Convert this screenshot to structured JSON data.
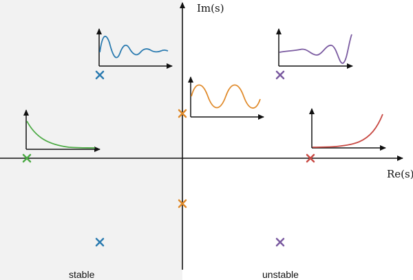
{
  "axes": {
    "x_label": "Re(s)",
    "y_label": "Im(s)"
  },
  "regions": {
    "stable_label": "stable",
    "unstable_label": "unstable"
  },
  "colors": {
    "stable_region_fill": "#f2f2f2",
    "axis": "#111111",
    "blue": "#2b7bb0",
    "green": "#4caa44",
    "orange": "#e08a2a",
    "purple": "#7a5aa0",
    "red": "#c84a44"
  },
  "poles": [
    {
      "name": "pole-stable-oscillating-upper",
      "color_key": "blue"
    },
    {
      "name": "pole-stable-oscillating-lower",
      "color_key": "blue"
    },
    {
      "name": "pole-stable-real",
      "color_key": "green"
    },
    {
      "name": "pole-marginal-upper",
      "color_key": "orange"
    },
    {
      "name": "pole-marginal-lower",
      "color_key": "orange"
    },
    {
      "name": "pole-unstable-oscillating-upper",
      "color_key": "purple"
    },
    {
      "name": "pole-unstable-oscillating-lower",
      "color_key": "purple"
    },
    {
      "name": "pole-unstable-real",
      "color_key": "red"
    }
  ],
  "responses": [
    {
      "name": "response-damped-oscillation",
      "color_key": "blue",
      "kind": "damped-oscillation"
    },
    {
      "name": "response-exponential-decay",
      "color_key": "green",
      "kind": "exponential-decay"
    },
    {
      "name": "response-sustained-oscillation",
      "color_key": "orange",
      "kind": "sustained-oscillation"
    },
    {
      "name": "response-growing-oscillation",
      "color_key": "purple",
      "kind": "growing-oscillation"
    },
    {
      "name": "response-exponential-growth",
      "color_key": "red",
      "kind": "exponential-growth"
    }
  ]
}
